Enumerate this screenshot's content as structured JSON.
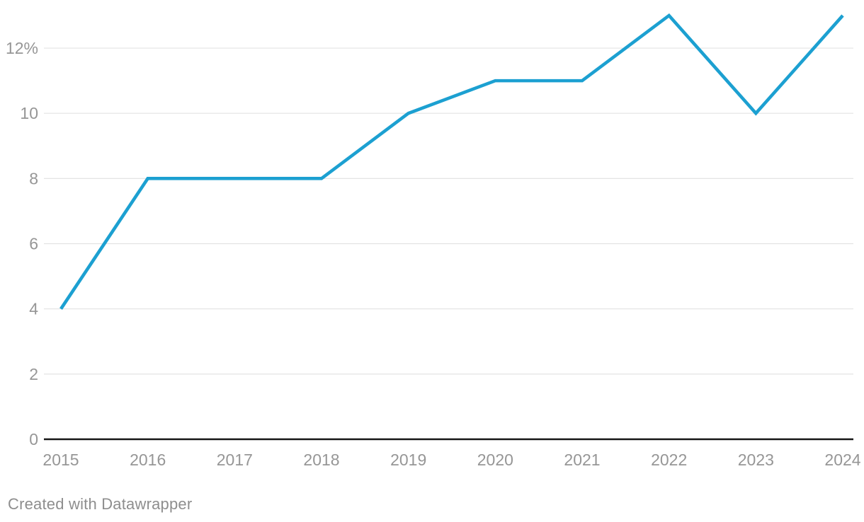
{
  "chart_data": {
    "type": "line",
    "title": "",
    "xlabel": "",
    "ylabel": "",
    "x": [
      "2015",
      "2016",
      "2017",
      "2018",
      "2019",
      "2020",
      "2021",
      "2022",
      "2023",
      "2024"
    ],
    "series": [
      {
        "name": "value",
        "values": [
          4,
          8,
          8,
          8,
          10,
          11,
          11,
          13,
          10,
          13
        ]
      }
    ],
    "ylim": [
      0,
      13.4
    ],
    "yticks": [
      {
        "value": 0,
        "label": "0"
      },
      {
        "value": 2,
        "label": "2"
      },
      {
        "value": 4,
        "label": "4"
      },
      {
        "value": 6,
        "label": "6"
      },
      {
        "value": 8,
        "label": "8"
      },
      {
        "value": 10,
        "label": "10"
      },
      {
        "value": 12,
        "label": "12%"
      }
    ],
    "grid": "horizontal",
    "legend": "none",
    "colors": {
      "line": "#1CA0D1",
      "gridline": "#e3e3e3",
      "zero_axis": "#161616",
      "tick_label": "#969696"
    }
  },
  "footer": {
    "credit": "Created with Datawrapper",
    "color": "#8e8e8e"
  }
}
